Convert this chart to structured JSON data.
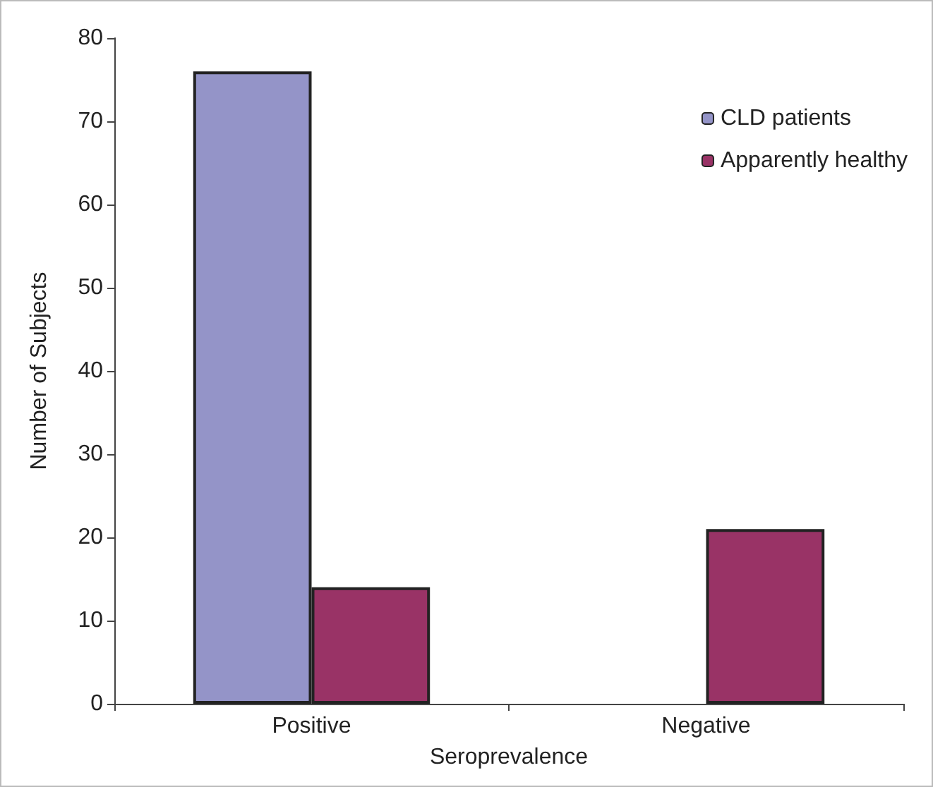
{
  "chart_data": {
    "type": "bar",
    "xlabel": "Seroprevalence",
    "ylabel": "Number of Subjects",
    "categories": [
      "Positive",
      "Negative"
    ],
    "series": [
      {
        "name": "CLD patients",
        "color": "#9494c8",
        "values": [
          76,
          null
        ]
      },
      {
        "name": "Apparently healthy",
        "color": "#993366",
        "values": [
          14,
          21
        ]
      }
    ],
    "ylim": [
      0,
      80
    ],
    "yticks": [
      0,
      10,
      20,
      30,
      40,
      50,
      60,
      70,
      80
    ],
    "grid": false,
    "legend": "top right"
  }
}
